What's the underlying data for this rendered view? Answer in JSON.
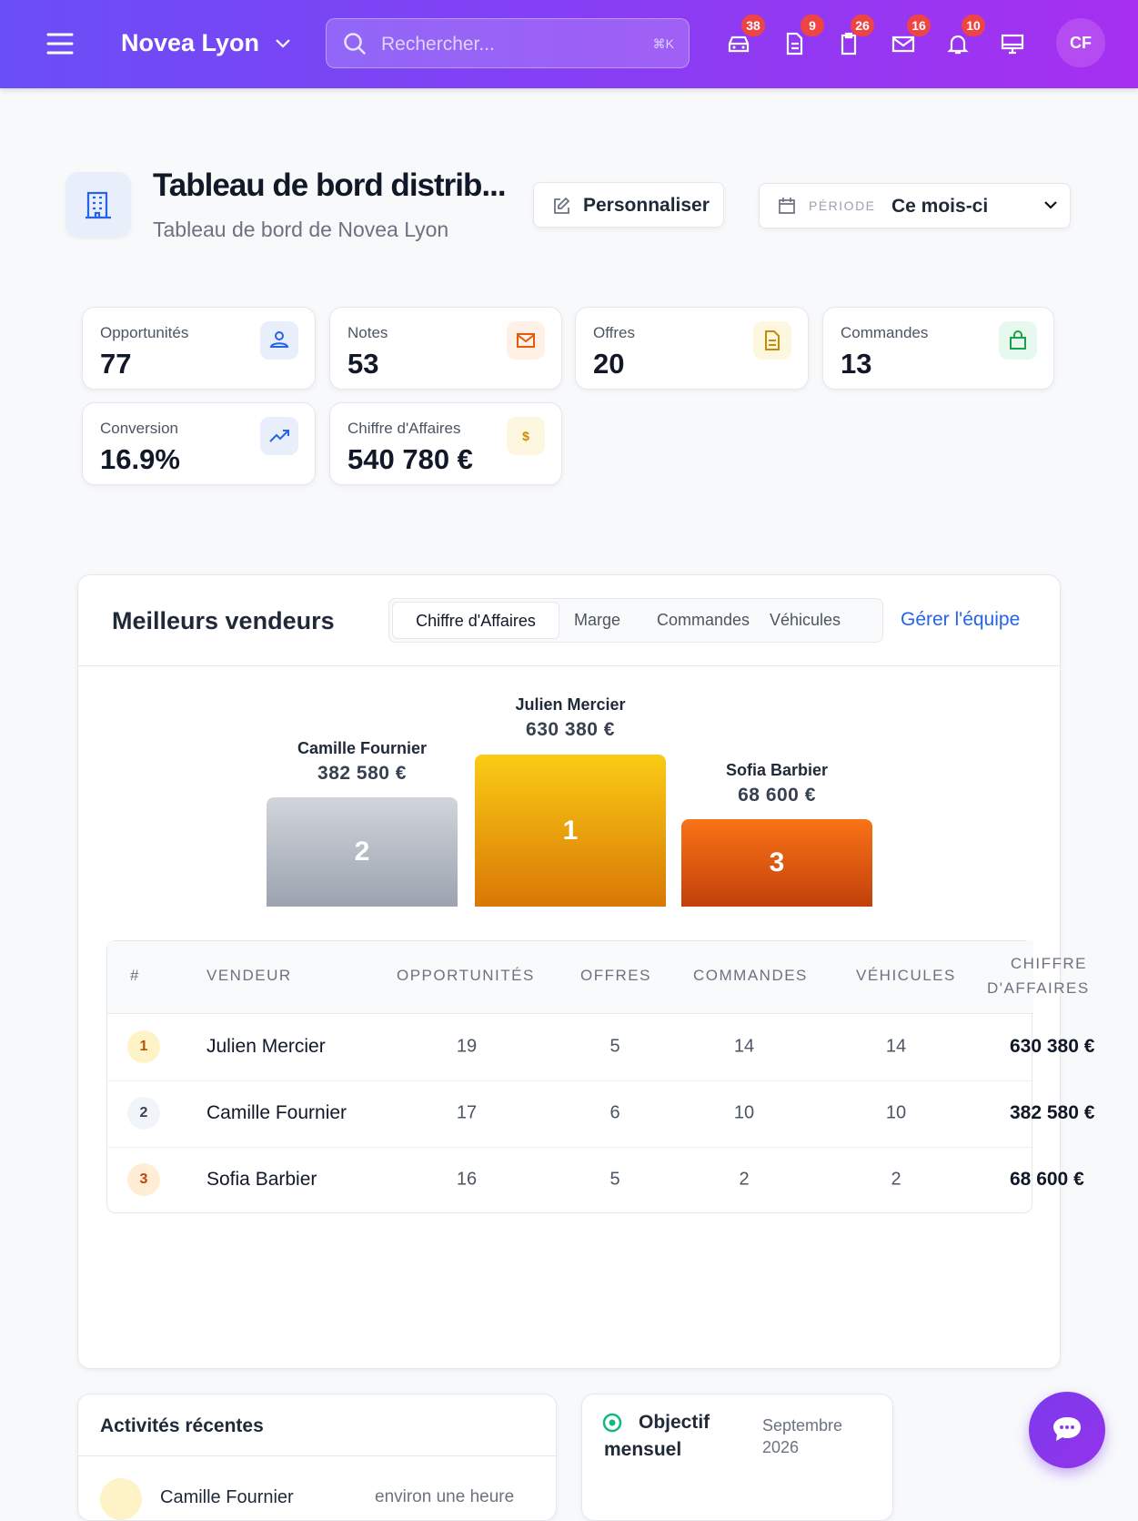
{
  "header": {
    "brand": "Novea Lyon",
    "search_placeholder": "Rechercher...",
    "shortcut": "⌘K",
    "badges": [
      38,
      9,
      26,
      16,
      10
    ],
    "avatar": "CF"
  },
  "page": {
    "title": "Tableau de bord distrib...",
    "subtitle": "Tableau de bord de Novea Lyon",
    "customize": "Personnaliser",
    "period_label": "PÉRIODE",
    "period_value": "Ce mois-ci"
  },
  "kpis": [
    {
      "label": "Opportunités",
      "value": 77
    },
    {
      "label": "Notes",
      "value": 53
    },
    {
      "label": "Offres",
      "value": 20
    },
    {
      "label": "Commandes",
      "value": 13
    },
    {
      "label": "Conversion",
      "value": "16.9%"
    },
    {
      "label": "Chiffre d'Affaires",
      "value": "540 780 €"
    }
  ],
  "top_sellers": {
    "title": "Meilleurs vendeurs",
    "tabs": [
      "Chiffre d'Affaires",
      "Marge",
      "Commandes",
      "Véhicules"
    ],
    "manage": "Gérer l'équipe",
    "podium": [
      {
        "rank": 2,
        "name": "Camille Fournier",
        "amount": "382 580 €"
      },
      {
        "rank": 1,
        "name": "Julien Mercier",
        "amount": "630 380 €"
      },
      {
        "rank": 3,
        "name": "Sofia Barbier",
        "amount": "68 600 €"
      }
    ],
    "table": {
      "headers": [
        "#",
        "VENDEUR",
        "OPPORTUNITÉS",
        "OFFRES",
        "COMMANDES",
        "VÉHICULES",
        "CHIFFRE D'AFFAIRES"
      ],
      "rows": [
        [
          1,
          "Julien Mercier",
          19,
          5,
          14,
          14,
          "630 380 €"
        ],
        [
          2,
          "Camille Fournier",
          17,
          6,
          10,
          10,
          "382 580 €"
        ],
        [
          3,
          "Sofia Barbier",
          16,
          5,
          2,
          2,
          "68 600 €"
        ]
      ]
    }
  },
  "activities": {
    "title": "Activités récentes",
    "items": [
      {
        "name": "Camille Fournier",
        "time": "environ une heure"
      }
    ]
  },
  "objective": {
    "title": "Objectif mensuel",
    "date": "Septembre 2026"
  }
}
